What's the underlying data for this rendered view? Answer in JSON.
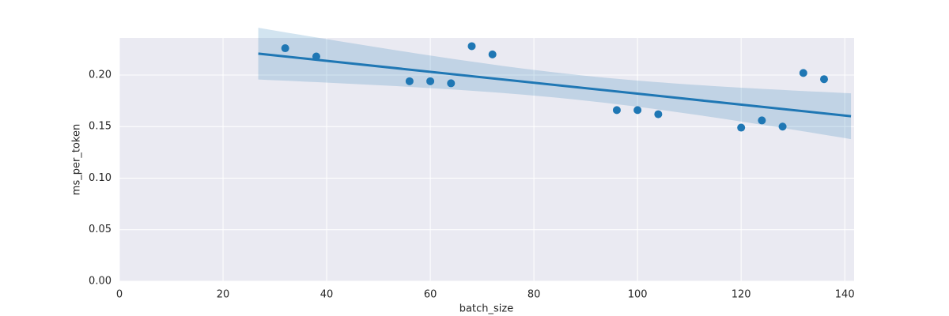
{
  "chart_data": {
    "type": "scatter",
    "x_label": "batch_size",
    "y_label": "ms_per_token",
    "x": [
      32,
      38,
      56,
      60,
      64,
      68,
      72,
      96,
      100,
      104,
      120,
      124,
      128,
      132,
      136
    ],
    "values": [
      0.226,
      0.218,
      0.194,
      0.194,
      0.192,
      0.228,
      0.22,
      0.166,
      0.166,
      0.162,
      0.149,
      0.156,
      0.15,
      0.202,
      0.196
    ],
    "color": "#1f77b4",
    "regression": true,
    "xlim": [
      0,
      141.8
    ],
    "xticks": [
      0,
      20,
      40,
      60,
      80,
      100,
      120,
      140
    ],
    "ylim": [
      0,
      0.236
    ],
    "yticks": [
      {
        "value": 0,
        "label": "0.00"
      },
      0.05,
      {
        "value": 0.1,
        "label": "0.10"
      },
      0.15,
      {
        "value": 0.2,
        "label": "0.20"
      }
    ],
    "grid": true
  }
}
